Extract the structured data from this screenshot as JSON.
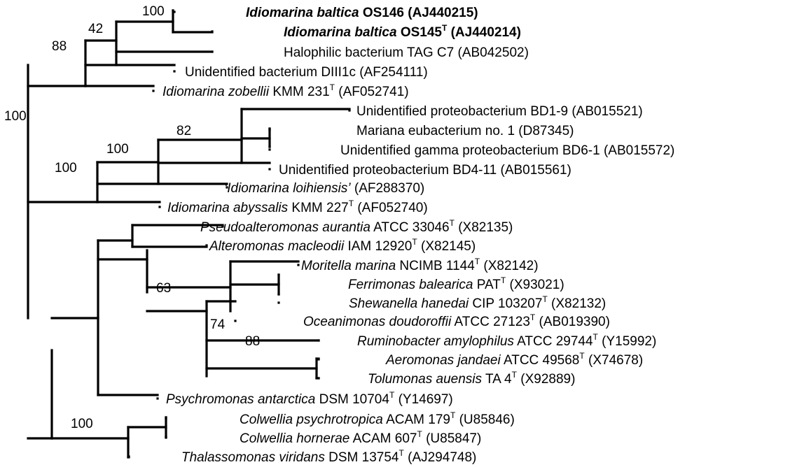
{
  "leaves": [
    {
      "parts": [
        {
          "t": "Idiomarina baltica",
          "i": true,
          "b": true
        },
        {
          "t": " OS146 (AJ440215)",
          "b": true
        }
      ]
    },
    {
      "parts": [
        {
          "t": "Idiomarina baltica",
          "i": true,
          "b": true
        },
        {
          "t": " OS145",
          "b": true
        },
        {
          "t": "T",
          "sup": true,
          "b": true
        },
        {
          "t": " (AJ440214)",
          "b": true
        }
      ]
    },
    {
      "parts": [
        {
          "t": "Halophilic bacterium TAG C7 (AB042502)"
        }
      ]
    },
    {
      "parts": [
        {
          "t": "Unidentified bacterium  DIII1c (AF254111)"
        }
      ]
    },
    {
      "parts": [
        {
          "t": "Idiomarina zobellii",
          "i": true
        },
        {
          "t": "  KMM 231"
        },
        {
          "t": "T",
          "sup": true
        },
        {
          "t": " (AF052741)"
        }
      ]
    },
    {
      "parts": [
        {
          "t": "Unidentified proteobacterium  BD1-9 (AB015521)"
        }
      ]
    },
    {
      "parts": [
        {
          "t": "Mariana eubacterium no. 1 (D87345)"
        }
      ]
    },
    {
      "parts": [
        {
          "t": "Unidentified gamma proteobacterium  BD6-1 (AB015572)"
        }
      ]
    },
    {
      "parts": [
        {
          "t": "Unidentified proteobacterium  BD4-11 (AB015561)"
        }
      ]
    },
    {
      "parts": [
        {
          "t": "‘Idiomarina loihiensis’",
          "i": true
        },
        {
          "t": " (AF288370)"
        }
      ]
    },
    {
      "parts": [
        {
          "t": "Idiomarina abyssalis",
          "i": true
        },
        {
          "t": "  KMM 227"
        },
        {
          "t": "T",
          "sup": true
        },
        {
          "t": " (AF052740)"
        }
      ]
    },
    {
      "parts": [
        {
          "t": "Pseudoalteromonas aurantia",
          "i": true
        },
        {
          "t": "  ATCC 33046"
        },
        {
          "t": "T",
          "sup": true
        },
        {
          "t": " (X82135)"
        }
      ]
    },
    {
      "parts": [
        {
          "t": "Alteromonas macleodii",
          "i": true
        },
        {
          "t": "  IAM 12920"
        },
        {
          "t": "T",
          "sup": true
        },
        {
          "t": " (X82145)"
        }
      ]
    },
    {
      "parts": [
        {
          "t": "Moritella marina",
          "i": true
        },
        {
          "t": "  NCIMB 1144"
        },
        {
          "t": "T",
          "sup": true
        },
        {
          "t": " (X82142)"
        }
      ]
    },
    {
      "parts": [
        {
          "t": "Ferrimonas balearica",
          "i": true
        },
        {
          "t": "  PAT"
        },
        {
          "t": "T",
          "sup": true
        },
        {
          "t": " (X93021)"
        }
      ]
    },
    {
      "parts": [
        {
          "t": "Shewanella hanedai",
          "i": true
        },
        {
          "t": "  CIP 103207"
        },
        {
          "t": "T",
          "sup": true
        },
        {
          "t": " (X82132)"
        }
      ]
    },
    {
      "parts": [
        {
          "t": "Oceanimonas doudoroffii",
          "i": true
        },
        {
          "t": "  ATCC 27123"
        },
        {
          "t": "T",
          "sup": true
        },
        {
          "t": " (AB019390)"
        }
      ]
    },
    {
      "parts": [
        {
          "t": "Ruminobacter amylophilus",
          "i": true
        },
        {
          "t": "  ATCC 29744"
        },
        {
          "t": "T",
          "sup": true
        },
        {
          "t": " (Y15992)"
        }
      ]
    },
    {
      "parts": [
        {
          "t": "Aeromonas jandaei",
          "i": true
        },
        {
          "t": "  ATCC 49568"
        },
        {
          "t": "T",
          "sup": true
        },
        {
          "t": " (X74678)"
        }
      ]
    },
    {
      "parts": [
        {
          "t": "Tolumonas auensis",
          "i": true
        },
        {
          "t": "  TA 4"
        },
        {
          "t": "T",
          "sup": true
        },
        {
          "t": " (X92889)"
        }
      ]
    },
    {
      "parts": [
        {
          "t": "Psychromonas antarctica",
          "i": true
        },
        {
          "t": "  DSM 10704"
        },
        {
          "t": "T",
          "sup": true
        },
        {
          "t": " (Y14697)"
        }
      ]
    },
    {
      "parts": [
        {
          "t": "Colwellia psychrotropica",
          "i": true
        },
        {
          "t": "  ACAM 179"
        },
        {
          "t": "T",
          "sup": true
        },
        {
          "t": " (U85846)"
        }
      ]
    },
    {
      "parts": [
        {
          "t": "Colwellia hornerae",
          "i": true
        },
        {
          "t": "  ACAM 607"
        },
        {
          "t": "T",
          "sup": true
        },
        {
          "t": " (U85847)"
        }
      ]
    },
    {
      "parts": [
        {
          "t": "Thalassomonas viridans",
          "i": true
        },
        {
          "t": "  DSM 13754"
        },
        {
          "t": "T",
          "sup": true
        },
        {
          "t": " (AJ294748)"
        }
      ]
    }
  ],
  "bootstrap": [
    "100",
    "42",
    "88",
    "100",
    "82",
    "100",
    "100",
    "63",
    "74",
    "88",
    "100"
  ]
}
